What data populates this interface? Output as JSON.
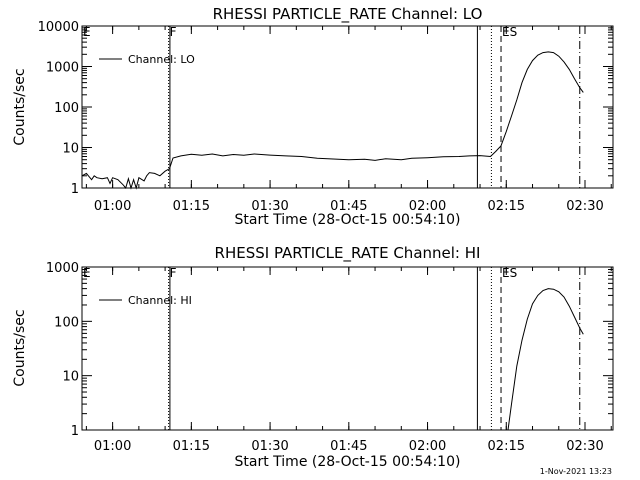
{
  "footer_timestamp": "1-Nov-2021 13:23",
  "chart_data": [
    {
      "type": "line",
      "title": "RHESSI PARTICLE_RATE Channel: LO",
      "xlabel": "Start Time (28-Oct-15 00:54:10)",
      "ylabel": "Counts/sec",
      "yscale": "log",
      "ylim": [
        1,
        10000
      ],
      "xlim": [
        "00:54:10",
        "02:35:20"
      ],
      "x_ticks": [
        "01:00",
        "01:15",
        "01:30",
        "01:45",
        "02:00",
        "02:15",
        "02:30"
      ],
      "y_ticks": [
        "1",
        "10",
        "100",
        "1000",
        "10000"
      ],
      "legend": {
        "position": "top-left",
        "entries": [
          "Channel: LO"
        ]
      },
      "markers": [
        {
          "label": "E",
          "time": "00:54:10",
          "style": "solid"
        },
        {
          "label": "F",
          "time": "01:10:40",
          "style": "dotted"
        },
        {
          "label": "",
          "time": "01:10:55",
          "style": "solid"
        },
        {
          "label": "",
          "time": "02:09:30",
          "style": "solid"
        },
        {
          "label": "",
          "time": "02:12:10",
          "style": "dotted"
        },
        {
          "label": "ES",
          "time": "02:14:00",
          "style": "dashed"
        },
        {
          "label": "",
          "time": "02:29:00",
          "style": "dashdot"
        }
      ],
      "series": [
        {
          "name": "Channel: LO",
          "points": [
            [
              "00:54:10",
              2.0
            ],
            [
              "00:55:00",
              2.3
            ],
            [
              "00:56:00",
              1.6
            ],
            [
              "00:56:30",
              2.0
            ],
            [
              "00:57:00",
              1.8
            ],
            [
              "00:58:00",
              1.7
            ],
            [
              "00:59:00",
              1.8
            ],
            [
              "00:59:30",
              1.3
            ],
            [
              "01:00:00",
              1.8
            ],
            [
              "01:01:00",
              1.6
            ],
            [
              "01:02:00",
              1.2
            ],
            [
              "01:02:30",
              1.0
            ],
            [
              "01:03:00",
              1.7
            ],
            [
              "01:03:30",
              1.0
            ],
            [
              "01:04:00",
              1.6
            ],
            [
              "01:04:30",
              1.0
            ],
            [
              "01:05:00",
              1.8
            ],
            [
              "01:06:00",
              1.5
            ],
            [
              "01:06:30",
              2.0
            ],
            [
              "01:07:00",
              2.4
            ],
            [
              "01:08:00",
              2.3
            ],
            [
              "01:09:00",
              2.0
            ],
            [
              "01:10:00",
              2.6
            ],
            [
              "01:10:50",
              3.0
            ],
            [
              "01:11:30",
              5.5
            ],
            [
              "01:13:00",
              6.2
            ],
            [
              "01:15:00",
              6.8
            ],
            [
              "01:17:00",
              6.4
            ],
            [
              "01:19:00",
              6.9
            ],
            [
              "01:21:00",
              6.2
            ],
            [
              "01:23:00",
              6.7
            ],
            [
              "01:25:00",
              6.4
            ],
            [
              "01:27:00",
              6.9
            ],
            [
              "01:30:00",
              6.5
            ],
            [
              "01:33:00",
              6.2
            ],
            [
              "01:36:00",
              6.0
            ],
            [
              "01:39:00",
              5.4
            ],
            [
              "01:42:00",
              5.2
            ],
            [
              "01:45:00",
              5.0
            ],
            [
              "01:48:00",
              5.1
            ],
            [
              "01:50:00",
              4.8
            ],
            [
              "01:52:00",
              5.3
            ],
            [
              "01:55:00",
              5.0
            ],
            [
              "01:57:00",
              5.4
            ],
            [
              "02:00:00",
              5.6
            ],
            [
              "02:03:00",
              5.9
            ],
            [
              "02:06:00",
              6.0
            ],
            [
              "02:08:00",
              6.2
            ],
            [
              "02:10:00",
              6.3
            ],
            [
              "02:12:00",
              6.0
            ],
            [
              "02:13:00",
              8.0
            ],
            [
              "02:14:00",
              11
            ],
            [
              "02:15:00",
              25
            ],
            [
              "02:16:00",
              60
            ],
            [
              "02:17:00",
              150
            ],
            [
              "02:18:00",
              400
            ],
            [
              "02:19:00",
              850
            ],
            [
              "02:20:00",
              1400
            ],
            [
              "02:21:00",
              1900
            ],
            [
              "02:22:00",
              2200
            ],
            [
              "02:23:00",
              2300
            ],
            [
              "02:24:00",
              2200
            ],
            [
              "02:25:00",
              1800
            ],
            [
              "02:26:00",
              1300
            ],
            [
              "02:27:00",
              850
            ],
            [
              "02:28:00",
              500
            ],
            [
              "02:29:00",
              300
            ],
            [
              "02:29:40",
              230
            ]
          ]
        }
      ]
    },
    {
      "type": "line",
      "title": "RHESSI PARTICLE_RATE Channel: HI",
      "xlabel": "Start Time (28-Oct-15 00:54:10)",
      "ylabel": "Counts/sec",
      "yscale": "log",
      "ylim": [
        1,
        1000
      ],
      "xlim": [
        "00:54:10",
        "02:35:20"
      ],
      "x_ticks": [
        "01:00",
        "01:15",
        "01:30",
        "01:45",
        "02:00",
        "02:15",
        "02:30"
      ],
      "y_ticks": [
        "1",
        "10",
        "100",
        "1000"
      ],
      "legend": {
        "position": "top-left",
        "entries": [
          "Channel: HI"
        ]
      },
      "markers": [
        {
          "label": "E",
          "time": "00:54:10",
          "style": "solid"
        },
        {
          "label": "F",
          "time": "01:10:40",
          "style": "dotted"
        },
        {
          "label": "",
          "time": "01:10:55",
          "style": "solid"
        },
        {
          "label": "",
          "time": "02:09:30",
          "style": "solid"
        },
        {
          "label": "",
          "time": "02:12:10",
          "style": "dotted"
        },
        {
          "label": "ES",
          "time": "02:14:00",
          "style": "dashed"
        },
        {
          "label": "",
          "time": "02:29:00",
          "style": "dashdot"
        }
      ],
      "series": [
        {
          "name": "Channel: HI",
          "points": [
            [
              "02:15:20",
              1.0
            ],
            [
              "02:16:00",
              3
            ],
            [
              "02:17:00",
              15
            ],
            [
              "02:18:00",
              45
            ],
            [
              "02:19:00",
              110
            ],
            [
              "02:20:00",
              210
            ],
            [
              "02:21:00",
              300
            ],
            [
              "02:22:00",
              370
            ],
            [
              "02:23:00",
              400
            ],
            [
              "02:24:00",
              390
            ],
            [
              "02:25:00",
              350
            ],
            [
              "02:26:00",
              280
            ],
            [
              "02:27:00",
              190
            ],
            [
              "02:28:00",
              120
            ],
            [
              "02:29:00",
              75
            ],
            [
              "02:29:40",
              58
            ]
          ]
        }
      ]
    }
  ]
}
